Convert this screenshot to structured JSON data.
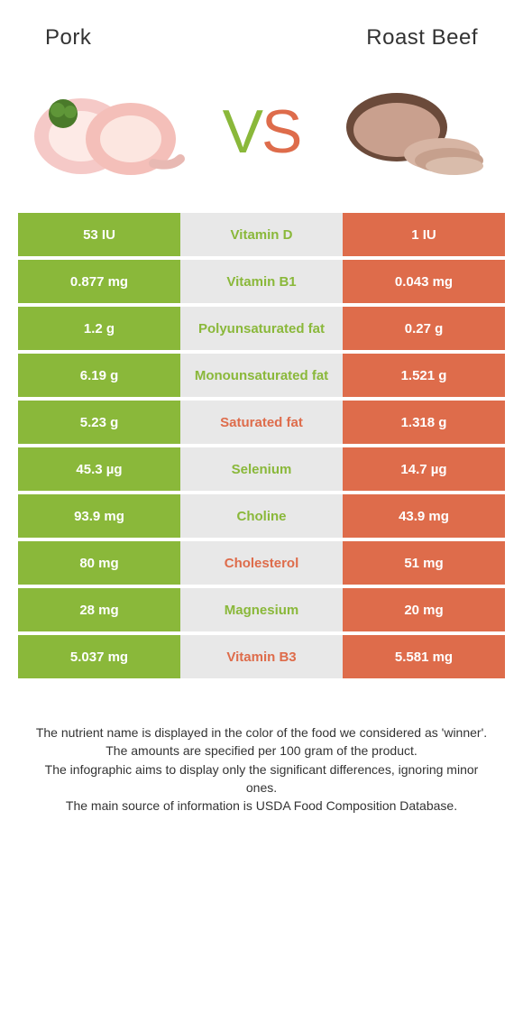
{
  "colors": {
    "green": "#8ab83a",
    "orange": "#de6c4b",
    "grey": "#e8e8e8",
    "text": "#333333",
    "white": "#ffffff"
  },
  "header": {
    "left": "Pork",
    "right": "Roast Beef"
  },
  "vs": {
    "v": "V",
    "s": "S"
  },
  "rows": [
    {
      "left": "53 IU",
      "label": "Vitamin D",
      "right": "1 IU",
      "winner": "left"
    },
    {
      "left": "0.877 mg",
      "label": "Vitamin B1",
      "right": "0.043 mg",
      "winner": "left"
    },
    {
      "left": "1.2 g",
      "label": "Polyunsaturated fat",
      "right": "0.27 g",
      "winner": "left"
    },
    {
      "left": "6.19 g",
      "label": "Monounsaturated fat",
      "right": "1.521 g",
      "winner": "left"
    },
    {
      "left": "5.23 g",
      "label": "Saturated fat",
      "right": "1.318 g",
      "winner": "right"
    },
    {
      "left": "45.3 µg",
      "label": "Selenium",
      "right": "14.7 µg",
      "winner": "left"
    },
    {
      "left": "93.9 mg",
      "label": "Choline",
      "right": "43.9 mg",
      "winner": "left"
    },
    {
      "left": "80 mg",
      "label": "Cholesterol",
      "right": "51 mg",
      "winner": "right"
    },
    {
      "left": "28 mg",
      "label": "Magnesium",
      "right": "20 mg",
      "winner": "left"
    },
    {
      "left": "5.037 mg",
      "label": "Vitamin B3",
      "right": "5.581 mg",
      "winner": "right"
    }
  ],
  "footer": {
    "line1": "The nutrient name is displayed in the color of the food we considered as 'winner'.",
    "line2": "The amounts are specified per 100 gram of the product.",
    "line3": "The infographic aims to display only the significant differences, ignoring minor ones.",
    "line4": "The main source of information is USDA Food Composition Database."
  }
}
